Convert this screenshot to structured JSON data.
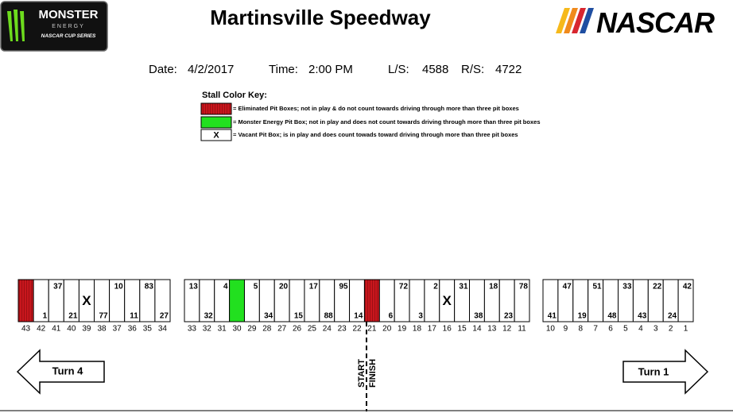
{
  "header": {
    "logo_left": {
      "brand": "MONSTER",
      "sub": "ENERGY",
      "series": "NASCAR CUP SERIES"
    },
    "title": "Martinsville Speedway",
    "logo_right": "NASCAR"
  },
  "info": {
    "date_label": "Date:",
    "date": "4/2/2017",
    "time_label": "Time:",
    "time": "2:00 PM",
    "ls_label": "L/S:",
    "ls": "4588",
    "rs_label": "R/S:",
    "rs": "4722"
  },
  "key": {
    "title": "Stall Color Key:",
    "items": [
      {
        "color": "#c8161d",
        "text": "= Eliminated Pit Boxes; not in play & do not count towards driving through more than three pit boxes"
      },
      {
        "color": "#22e01f",
        "text": "= Monster Energy Pit Box; not in play and does not count towards driving through more than three pit boxes"
      },
      {
        "color": "#ffffff",
        "mark": "X",
        "text": "= Vacant Pit Box; is in play and does count towads toward driving through more than three pit boxes"
      }
    ]
  },
  "pit_road": {
    "groups": [
      [
        {
          "stall": 43,
          "color": "#c8161d"
        },
        {
          "stall": 42,
          "car": "1"
        },
        {
          "stall": 41,
          "car": "37"
        },
        {
          "stall": 40,
          "car": "21"
        },
        {
          "stall": 39,
          "mark": "X"
        },
        {
          "stall": 38,
          "car": "77"
        },
        {
          "stall": 37,
          "car": "10"
        },
        {
          "stall": 36,
          "car": "11"
        },
        {
          "stall": 35,
          "car": "83"
        },
        {
          "stall": 34,
          "car": "27"
        }
      ],
      [
        {
          "stall": 33,
          "car": "13"
        },
        {
          "stall": 32,
          "car": "32"
        },
        {
          "stall": 31,
          "car": "4"
        },
        {
          "stall": 30,
          "color": "#22e01f"
        },
        {
          "stall": 29,
          "car": "5"
        },
        {
          "stall": 28,
          "car": "34"
        },
        {
          "stall": 27,
          "car": "20"
        },
        {
          "stall": 26,
          "car": "15"
        },
        {
          "stall": 25,
          "car": "17"
        },
        {
          "stall": 24,
          "car": "88"
        },
        {
          "stall": 23,
          "car": "95"
        },
        {
          "stall": 22,
          "car": "14"
        },
        {
          "stall": 21,
          "color": "#c8161d"
        },
        {
          "stall": 20,
          "car": "6"
        },
        {
          "stall": 19,
          "car": "72"
        },
        {
          "stall": 18,
          "car": "3"
        },
        {
          "stall": 17,
          "car": "2"
        },
        {
          "stall": 16,
          "mark": "X"
        },
        {
          "stall": 15,
          "car": "31"
        },
        {
          "stall": 14,
          "car": "38"
        },
        {
          "stall": 13,
          "car": "18"
        },
        {
          "stall": 12,
          "car": "23"
        },
        {
          "stall": 11,
          "car": "78"
        }
      ],
      [
        {
          "stall": 10,
          "car": "41"
        },
        {
          "stall": 9,
          "car": "47"
        },
        {
          "stall": 8,
          "car": "19"
        },
        {
          "stall": 7,
          "car": "51"
        },
        {
          "stall": 6,
          "car": "48"
        },
        {
          "stall": 5,
          "car": "33"
        },
        {
          "stall": 4,
          "car": "43"
        },
        {
          "stall": 3,
          "car": "22"
        },
        {
          "stall": 2,
          "car": "24"
        },
        {
          "stall": 1,
          "car": "42"
        }
      ]
    ],
    "start": "START",
    "finish": "FINISH",
    "turn_left": "Turn 4",
    "turn_right": "Turn 1"
  }
}
